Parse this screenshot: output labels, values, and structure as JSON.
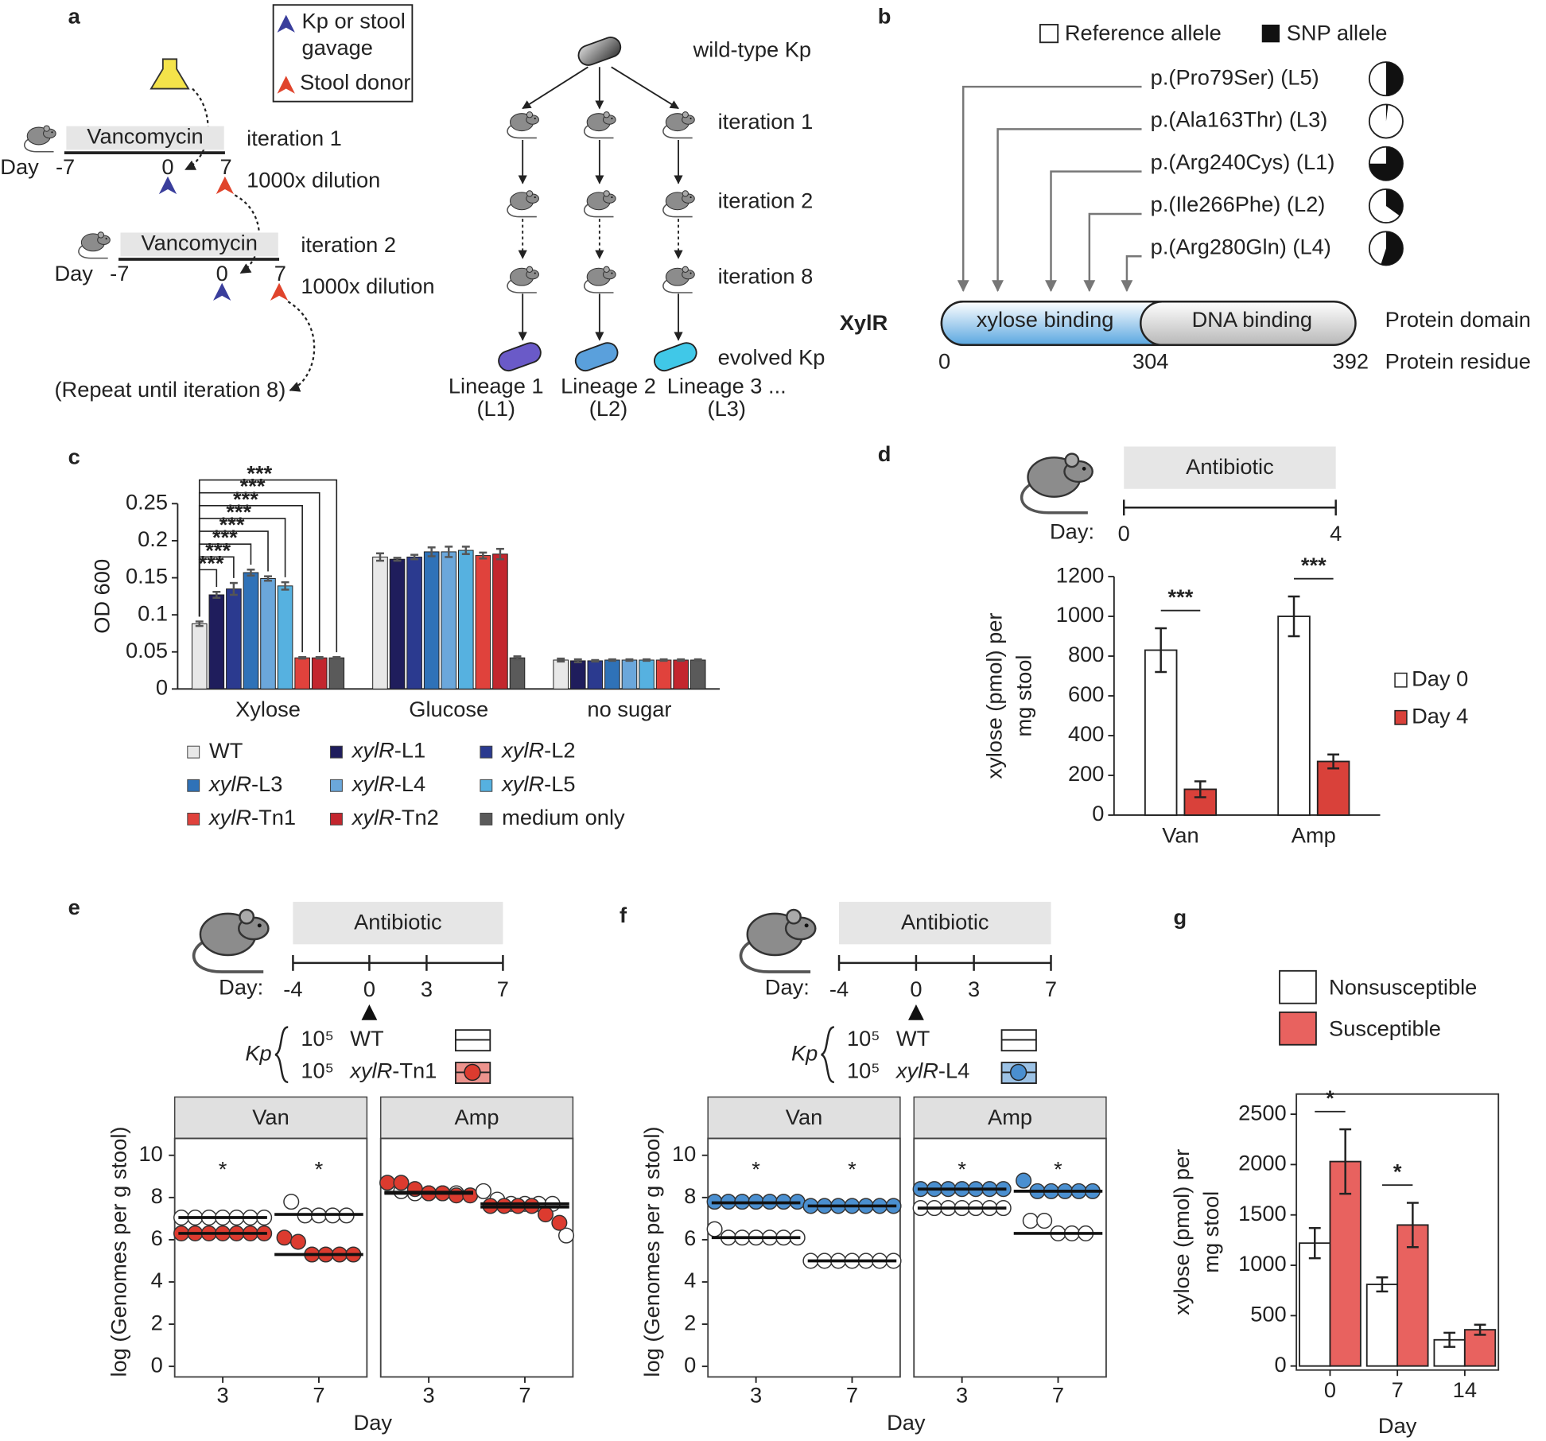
{
  "panel_labels": [
    "a",
    "b",
    "c",
    "d",
    "e",
    "f",
    "g"
  ],
  "diagram_a": {
    "legend": [
      "Kp or stool",
      "gavage",
      "Stool donor"
    ],
    "iterations": [
      {
        "drug": "Vancomycin",
        "label": "iteration 1",
        "day_label": "Day",
        "days": [
          "-7",
          "0",
          "7"
        ],
        "dilution": "1000x dilution"
      },
      {
        "drug": "Vancomycin",
        "label": "iteration 2",
        "day_label": "Day",
        "days": [
          "-7",
          "0",
          "7"
        ],
        "dilution": "1000x dilution"
      }
    ],
    "repeat": "(Repeat until iteration 8)",
    "ancestor": "wild-type Kp",
    "steps": [
      "iteration 1",
      "iteration 2",
      "iteration 8"
    ],
    "evolved": "evolved Kp",
    "lineages": [
      [
        "Lineage 1",
        "(L1)"
      ],
      [
        "Lineage 2",
        "(L2)"
      ],
      [
        "Lineage 3 ...",
        "(L3)"
      ]
    ]
  },
  "diagram_b": {
    "legend": [
      "Reference allele",
      "SNP allele"
    ],
    "protein": "XylR",
    "domains": [
      "xylose binding",
      "DNA binding"
    ],
    "residues": [
      0,
      304,
      392
    ],
    "row_labels": [
      "Protein domain",
      "Protein residue"
    ],
    "variants": [
      {
        "label": "p.(Pro79Ser) (L5)",
        "snp_fraction": 0.5
      },
      {
        "label": "p.(Ala163Thr) (L3)",
        "snp_fraction": 0.02
      },
      {
        "label": "p.(Arg240Cys) (L1)",
        "snp_fraction": 0.75
      },
      {
        "label": "p.(Ile266Phe) (L2)",
        "snp_fraction": 0.35
      },
      {
        "label": "p.(Arg280Gln) (L4)",
        "snp_fraction": 0.55
      }
    ]
  },
  "chart_data": [
    {
      "type": "bar",
      "ylabel": "OD 600",
      "categories": [
        "Xylose",
        "Glucose",
        "no sugar"
      ],
      "series": [
        {
          "name": "WT",
          "color": "#e8e8e8",
          "values": [
            0.088,
            0.178,
            0.039
          ],
          "errors": [
            0.003,
            0.005,
            0.002
          ]
        },
        {
          "name": "xylR-L1",
          "color": "#1f1d5c",
          "values": [
            0.127,
            0.175,
            0.038
          ],
          "errors": [
            0.004,
            0.002,
            0.002
          ]
        },
        {
          "name": "xylR-L2",
          "color": "#2b3a8f",
          "values": [
            0.135,
            0.178,
            0.038
          ],
          "errors": [
            0.008,
            0.003,
            0.001
          ]
        },
        {
          "name": "xylR-L3",
          "color": "#2f72b8",
          "values": [
            0.157,
            0.185,
            0.039
          ],
          "errors": [
            0.004,
            0.006,
            0.001
          ]
        },
        {
          "name": "xylR-L4",
          "color": "#6ba7db",
          "values": [
            0.149,
            0.185,
            0.039
          ],
          "errors": [
            0.003,
            0.007,
            0.001
          ]
        },
        {
          "name": "xylR-L5",
          "color": "#56b1e0",
          "values": [
            0.139,
            0.187,
            0.039
          ],
          "errors": [
            0.005,
            0.005,
            0.001
          ]
        },
        {
          "name": "xylR-Tn1",
          "color": "#e0423c",
          "values": [
            0.042,
            0.18,
            0.039
          ],
          "errors": [
            0.001,
            0.004,
            0.001
          ]
        },
        {
          "name": "xylR-Tn2",
          "color": "#c3262e",
          "values": [
            0.042,
            0.182,
            0.039
          ],
          "errors": [
            0.001,
            0.007,
            0.001
          ]
        },
        {
          "name": "medium only",
          "color": "#5a5a5a",
          "values": [
            0.042,
            0.042,
            0.039
          ],
          "errors": [
            0.001,
            0.002,
            0.001
          ]
        }
      ],
      "ylim": [
        0,
        0.25
      ],
      "yticks": [
        0,
        0.05,
        0.1,
        0.15,
        0.2,
        0.25
      ],
      "annotations": [
        "***",
        "***",
        "***",
        "***",
        "***",
        "***",
        "***",
        "***"
      ]
    },
    {
      "type": "bar",
      "timeline": {
        "label": "Antibiotic",
        "day_label": "Day:",
        "days": [
          0,
          4
        ]
      },
      "ylabel": [
        "xylose (pmol) per",
        "mg stool"
      ],
      "categories": [
        "Van",
        "Amp"
      ],
      "series": [
        {
          "name": "Day 0",
          "color": "#ffffff",
          "values": [
            830,
            1000
          ],
          "errors": [
            110,
            100
          ]
        },
        {
          "name": "Day 4",
          "color": "#d9413a",
          "values": [
            130,
            270
          ],
          "errors": [
            40,
            35
          ]
        }
      ],
      "ylim": [
        0,
        1200
      ],
      "yticks": [
        0,
        200,
        400,
        600,
        800,
        1000,
        1200
      ],
      "annotations": [
        "***",
        "***"
      ]
    },
    {
      "type": "strip",
      "timeline": {
        "label": "Antibiotic",
        "day_label": "Day:",
        "days": [
          -4,
          0,
          3,
          7
        ],
        "marker_day": 0
      },
      "group_label": "Kp",
      "dose": "10⁵",
      "facets": [
        "Van",
        "Amp"
      ],
      "categories": [
        "3",
        "7"
      ],
      "series": [
        {
          "name": "WT",
          "color": "#ffffff",
          "label_color": "#222222",
          "values": [
            [
              [
                7.05,
                7.05,
                7.05,
                7.05,
                7.05,
                7.05,
                7.05
              ],
              [
                7.8,
                7.15,
                7.15,
                7.15,
                7.15
              ]
            ],
            [
              [
                8.3,
                8.2,
                8.2,
                8.2,
                8.2
              ],
              [
                8.3,
                7.9,
                7.7,
                7.7,
                7.7,
                7.7,
                6.2
              ]
            ]
          ],
          "medians": [
            [
              7.05,
              7.2
            ],
            [
              8.25,
              7.7
            ]
          ]
        },
        {
          "name": "xylR-Tn1",
          "color": "#dc3b2f",
          "label_color": "#c8175d",
          "values": [
            [
              [
                6.3,
                6.3,
                6.3,
                6.3,
                6.3,
                6.3,
                6.3
              ],
              [
                6.1,
                5.9,
                5.3,
                5.3,
                5.3,
                5.3
              ]
            ],
            [
              [
                8.7,
                8.7,
                8.4,
                8.2,
                8.2,
                8.1,
                8.1
              ],
              [
                7.6,
                7.6,
                7.6,
                7.6,
                7.2,
                6.8
              ]
            ]
          ],
          "medians": [
            [
              6.3,
              5.3
            ],
            [
              8.2,
              7.55
            ]
          ]
        }
      ],
      "annotations": [
        [
          "*",
          "*"
        ],
        []
      ],
      "xlabel": "Day",
      "ylabel": "log (Genomes per g stool)",
      "ylim": [
        -0.5,
        10.8
      ],
      "yticks": [
        0,
        2,
        4,
        6,
        8,
        10
      ]
    },
    {
      "type": "strip",
      "timeline": {
        "label": "Antibiotic",
        "day_label": "Day:",
        "days": [
          -4,
          0,
          3,
          7
        ],
        "marker_day": 0
      },
      "group_label": "Kp",
      "dose": "10⁵",
      "facets": [
        "Van",
        "Amp"
      ],
      "categories": [
        "3",
        "7"
      ],
      "series": [
        {
          "name": "WT",
          "color": "#ffffff",
          "label_color": "#222222",
          "values": [
            [
              [
                6.5,
                6.1,
                6.1,
                6.1,
                6.1,
                6.1,
                6.1
              ],
              [
                5.0,
                5.0,
                5.0,
                5.0,
                5.0,
                5.0,
                5.0
              ]
            ],
            [
              [
                7.5,
                7.5,
                7.5,
                7.5,
                7.5,
                7.5,
                7.5
              ],
              [
                6.9,
                6.9,
                6.3,
                6.3,
                6.3
              ]
            ]
          ],
          "medians": [
            [
              6.1,
              5.0
            ],
            [
              7.5,
              6.3
            ]
          ]
        },
        {
          "name": "xylR-L4",
          "color": "#4a8fd0",
          "label_color": "#3a8cc9",
          "values": [
            [
              [
                7.8,
                7.8,
                7.8,
                7.8,
                7.8,
                7.8,
                7.8
              ],
              [
                7.6,
                7.6,
                7.6,
                7.6,
                7.6,
                7.6,
                7.6
              ]
            ],
            [
              [
                8.4,
                8.4,
                8.4,
                8.4,
                8.4,
                8.4,
                8.4
              ],
              [
                8.8,
                8.3,
                8.3,
                8.3,
                8.3,
                8.3
              ]
            ]
          ],
          "medians": [
            [
              7.75,
              7.6
            ],
            [
              8.4,
              8.3
            ]
          ]
        }
      ],
      "annotations": [
        [
          "*",
          "*"
        ],
        [
          "*",
          "*"
        ]
      ],
      "xlabel": "Day",
      "ylabel": "log (Genomes per g stool)",
      "ylim": [
        -0.5,
        10.8
      ],
      "yticks": [
        0,
        2,
        4,
        6,
        8,
        10
      ]
    },
    {
      "type": "bar",
      "frame": true,
      "ylabel": [
        "xylose (pmol) per",
        "mg stool"
      ],
      "xlabel": "Day",
      "categories": [
        "0",
        "7",
        "14"
      ],
      "series": [
        {
          "name": "Nonsusceptible",
          "color": "#ffffff",
          "values": [
            1220,
            810,
            260
          ],
          "errors": [
            150,
            70,
            70
          ]
        },
        {
          "name": "Susceptible",
          "color": "#e8625f",
          "values": [
            2030,
            1400,
            360
          ],
          "errors": [
            320,
            220,
            50
          ]
        }
      ],
      "ylim": [
        -40,
        2700
      ],
      "yticks": [
        0,
        500,
        1000,
        1500,
        2000,
        2500
      ],
      "annotations": [
        "*",
        "*"
      ]
    }
  ]
}
